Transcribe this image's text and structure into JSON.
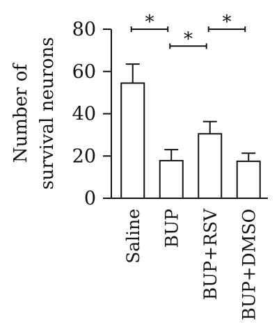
{
  "chart_data": {
    "type": "bar",
    "title": "",
    "xlabel": "",
    "ylabel_lines": [
      "Number of",
      "survival neurons"
    ],
    "categories": [
      "Saline",
      "BUP",
      "BUP+RSV",
      "BUP+DMSO"
    ],
    "values": [
      54.5,
      17.8,
      30.5,
      17.5
    ],
    "errors": [
      9.0,
      5.2,
      5.8,
      3.8
    ],
    "ylim": [
      0,
      80
    ],
    "yticks": [
      0,
      20,
      40,
      60,
      80
    ],
    "ytick_labels": [
      "0",
      "20",
      "40",
      "60",
      "80"
    ],
    "bar_fill": "#ffffff",
    "bar_stroke": "#111111",
    "significance": [
      {
        "from": 0,
        "to": 1,
        "y": 80,
        "label": "*"
      },
      {
        "from": 1,
        "to": 2,
        "y": 72,
        "label": "*"
      },
      {
        "from": 2,
        "to": 3,
        "y": 80,
        "label": "*"
      }
    ],
    "grid": false,
    "legend": "none"
  }
}
